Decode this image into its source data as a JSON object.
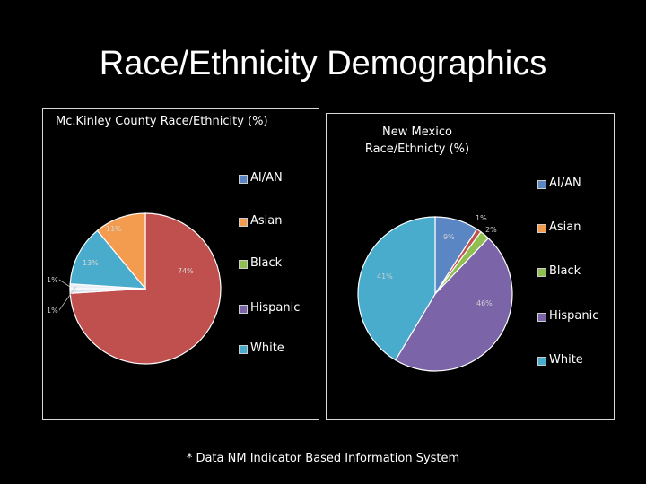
{
  "slide": {
    "title": "Race/Ethnicity Demographics",
    "footnote": "* Data NM Indicator Based Information System"
  },
  "colors": {
    "background": "#000000",
    "panel_border": "#d9d9d9",
    "AI/AN": "#5b86c4",
    "Asian": "#f39c4f",
    "Black": "#8fbf50",
    "Hispanic": "#7b64a8",
    "White": "#4aaccc",
    "mckinley_red": "#c0504d",
    "mckinley_slice_light": "#d9e6f2"
  },
  "chart_data": [
    {
      "type": "pie",
      "title": "Mc.Kinley County Race/Ethnicity (%)",
      "legend_position": "right",
      "legend": [
        "AI/AN",
        "Asian",
        "Black",
        "Hispanic",
        "White"
      ],
      "slices": [
        {
          "name": "slice-red",
          "value": 74,
          "label": "74%",
          "color": "#c0504d"
        },
        {
          "name": "slice-light-1",
          "value": 1,
          "label": "1%",
          "color": "#d9e6f2"
        },
        {
          "name": "slice-light-2",
          "value": 1,
          "label": "1%",
          "color": "#e9eef5"
        },
        {
          "name": "slice-blue",
          "value": 13,
          "label": "13%",
          "color": "#4aaccc"
        },
        {
          "name": "slice-orange",
          "value": 11,
          "label": "11%",
          "color": "#f39c4f"
        }
      ]
    },
    {
      "type": "pie",
      "title": "New Mexico Race/Ethnicty (%)",
      "legend_position": "right",
      "legend": [
        "AI/AN",
        "Asian",
        "Black",
        "Hispanic",
        "White"
      ],
      "slices": [
        {
          "name": "AI/AN",
          "value": 9,
          "label": "9%",
          "color": "#5b86c4"
        },
        {
          "name": "Asian",
          "value": 1,
          "label": "1%",
          "color": "#c0504d"
        },
        {
          "name": "Black",
          "value": 2,
          "label": "2%",
          "color": "#8fbf50"
        },
        {
          "name": "Hispanic",
          "value": 46,
          "label": "46%",
          "color": "#7b64a8"
        },
        {
          "name": "White",
          "value": 41,
          "label": "41%",
          "color": "#4aaccc"
        }
      ]
    }
  ]
}
